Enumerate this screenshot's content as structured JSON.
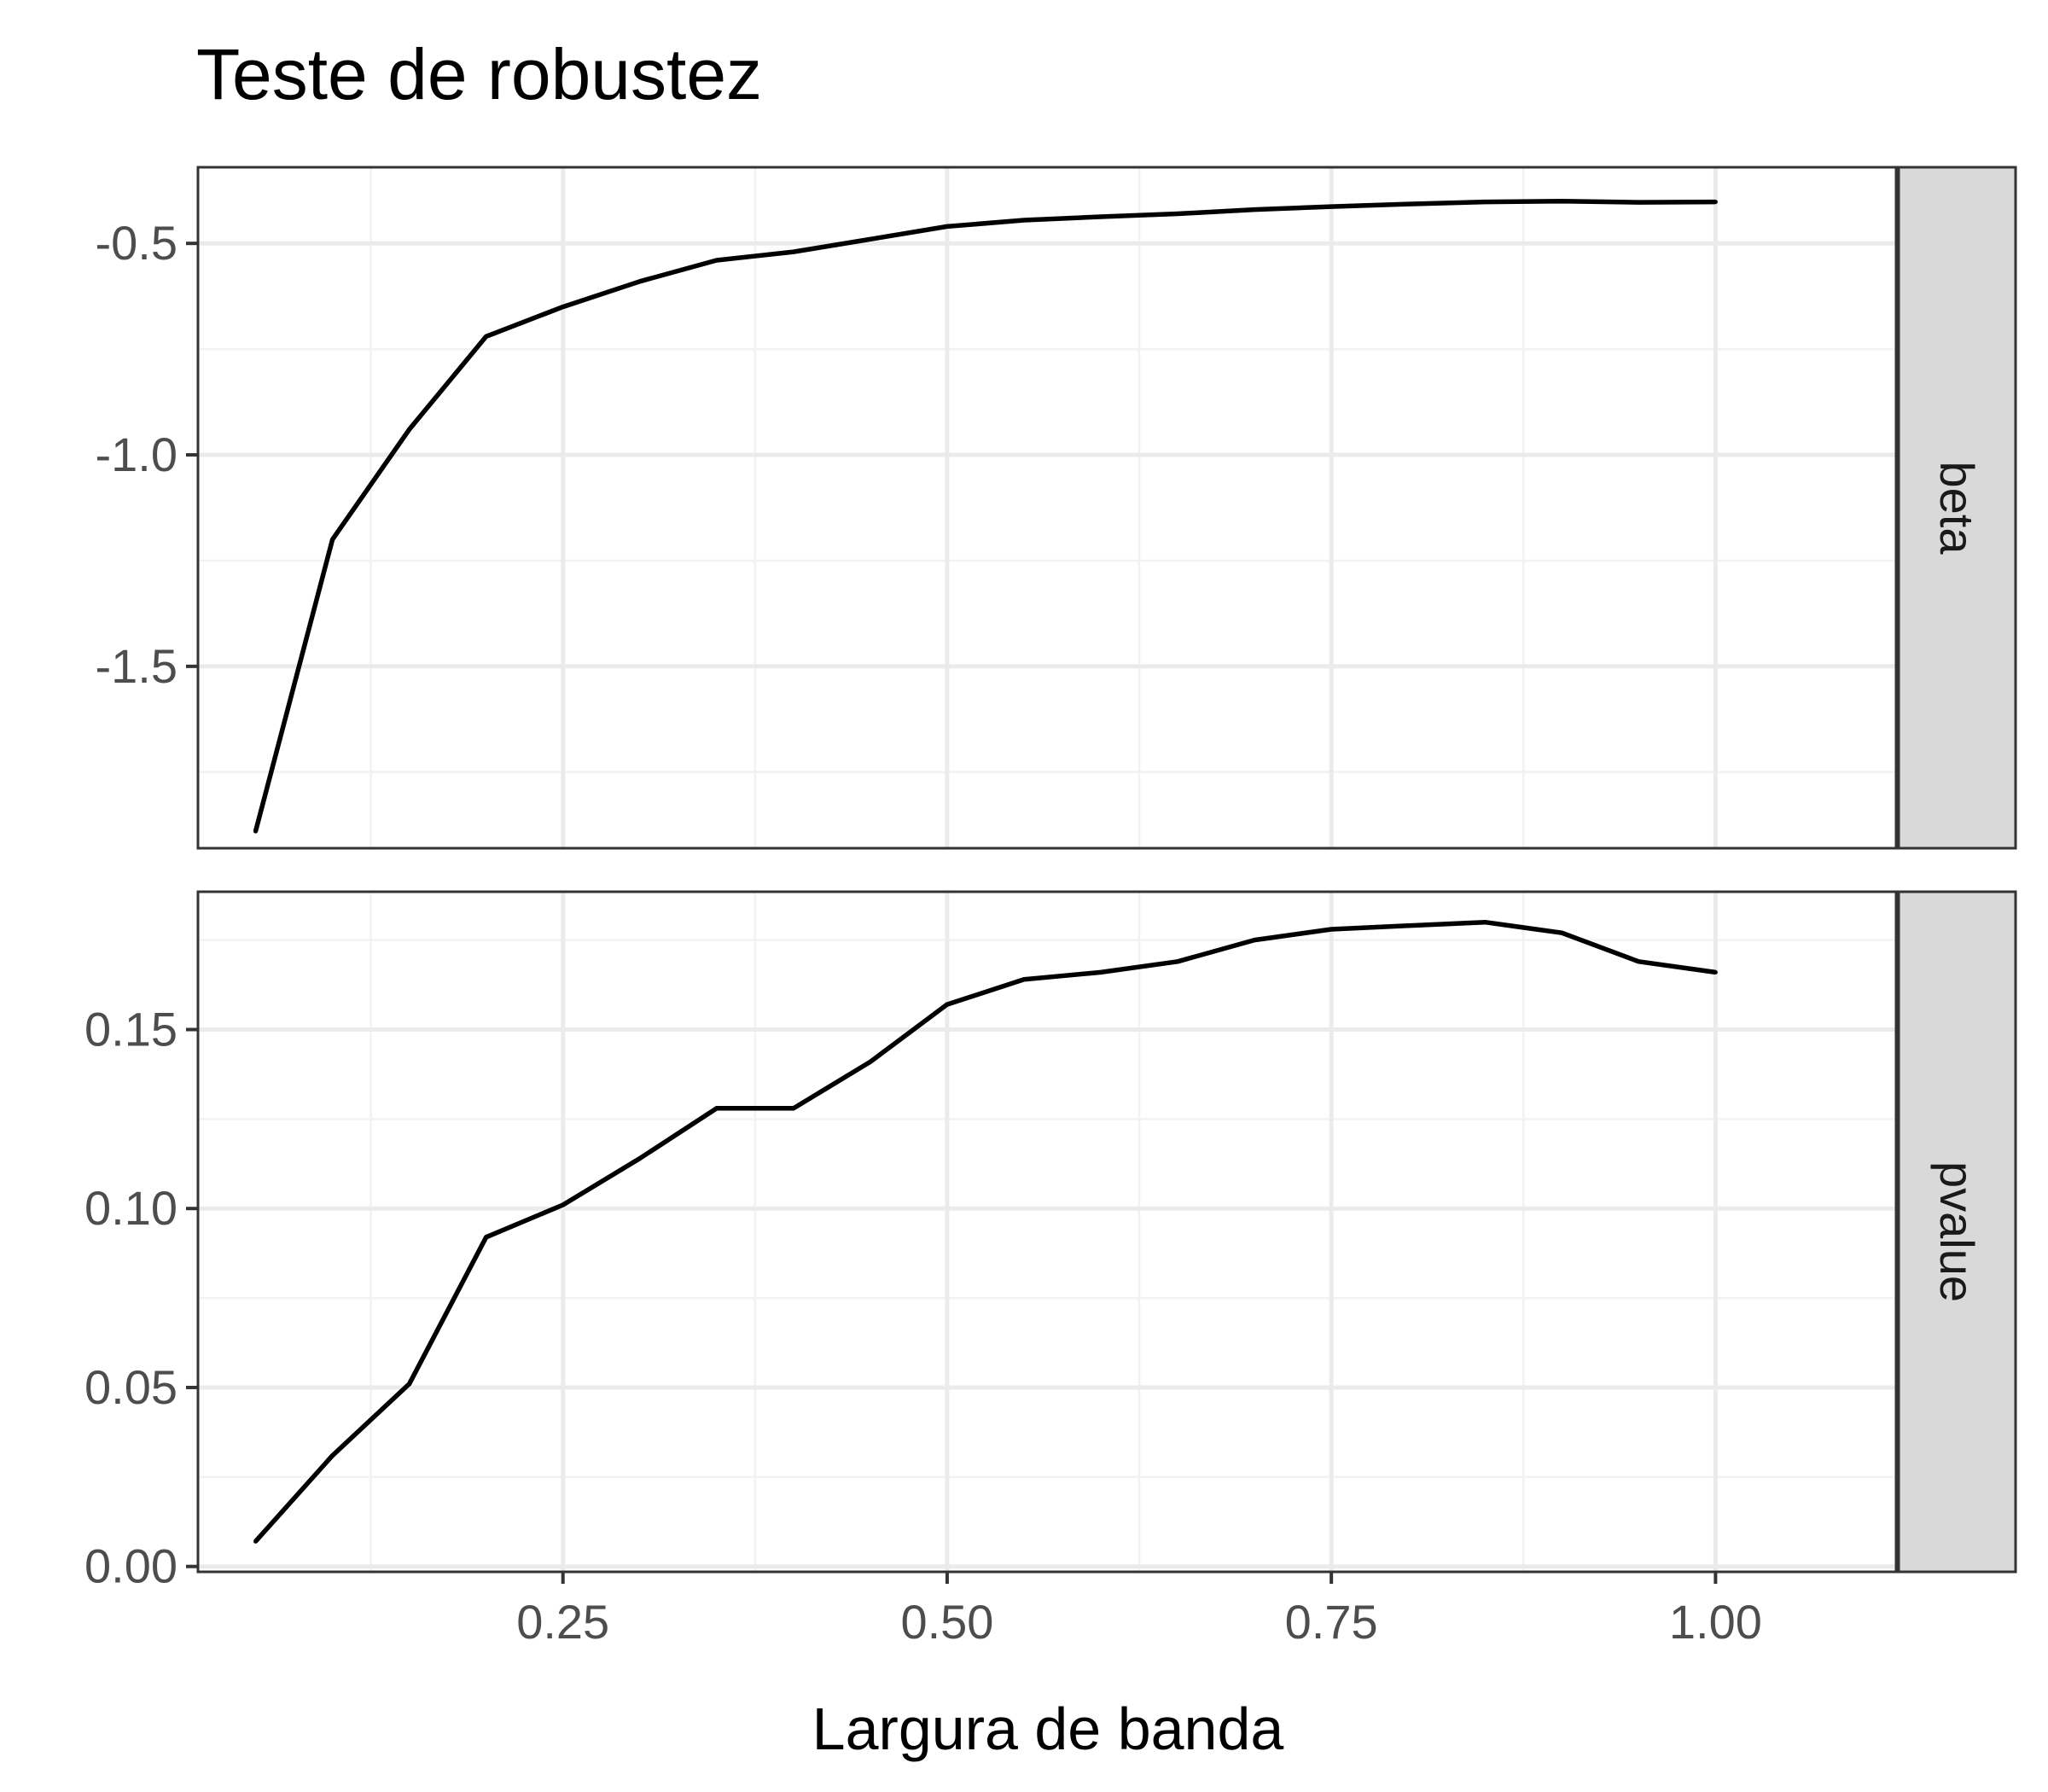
{
  "chart_data": {
    "type": "line",
    "title": "Teste de robustez",
    "xlabel": "Largura de banda",
    "ylabel": "",
    "xlim": [
      0.0125,
      1.1175
    ],
    "x_ticks": [
      0.25,
      0.5,
      0.75,
      1.0
    ],
    "x_tick_labels": [
      "0.25",
      "0.50",
      "0.75",
      "1.00"
    ],
    "x_minor_ticks": [
      0.125,
      0.375,
      0.625,
      0.875
    ],
    "x": [
      0.05,
      0.1,
      0.15,
      0.2,
      0.25,
      0.3,
      0.35,
      0.4,
      0.45,
      0.5,
      0.55,
      0.6,
      0.65,
      0.7,
      0.75,
      0.8,
      0.85,
      0.9,
      0.95,
      1.0
    ],
    "grid": true,
    "facets": [
      {
        "strip_label": "beta",
        "ylim": [
          -1.93,
          -0.32
        ],
        "y_ticks": [
          -1.5,
          -1.0,
          -0.5
        ],
        "y_tick_labels": [
          "-1.5",
          "-1.0",
          "-0.5"
        ],
        "y_minor_ticks": [
          -1.75,
          -1.25,
          -0.75
        ],
        "values": [
          -1.89,
          -1.2,
          -0.94,
          -0.72,
          -0.65,
          -0.59,
          -0.54,
          -0.52,
          -0.49,
          -0.46,
          -0.445,
          -0.437,
          -0.43,
          -0.42,
          -0.413,
          -0.407,
          -0.402,
          -0.4,
          -0.403,
          -0.402
        ]
      },
      {
        "strip_label": "pvalue",
        "ylim": [
          -0.0015,
          0.1885
        ],
        "y_ticks": [
          0.0,
          0.05,
          0.1,
          0.15
        ],
        "y_tick_labels": [
          "0.00",
          "0.05",
          "0.10",
          "0.15"
        ],
        "y_minor_ticks": [
          0.025,
          0.075,
          0.125,
          0.175
        ],
        "values": [
          0.007,
          0.031,
          0.051,
          0.092,
          0.101,
          0.114,
          0.128,
          0.128,
          0.141,
          0.157,
          0.164,
          0.166,
          0.169,
          0.175,
          0.178,
          0.179,
          0.18,
          0.177,
          0.169,
          0.166
        ]
      }
    ]
  },
  "colors": {
    "background": "#ffffff",
    "panel_border": "#333333",
    "grid_major": "#ebebeb",
    "grid_minor": "#f2f2f2",
    "strip_fill": "#d9d9d9",
    "line": "#000000"
  }
}
